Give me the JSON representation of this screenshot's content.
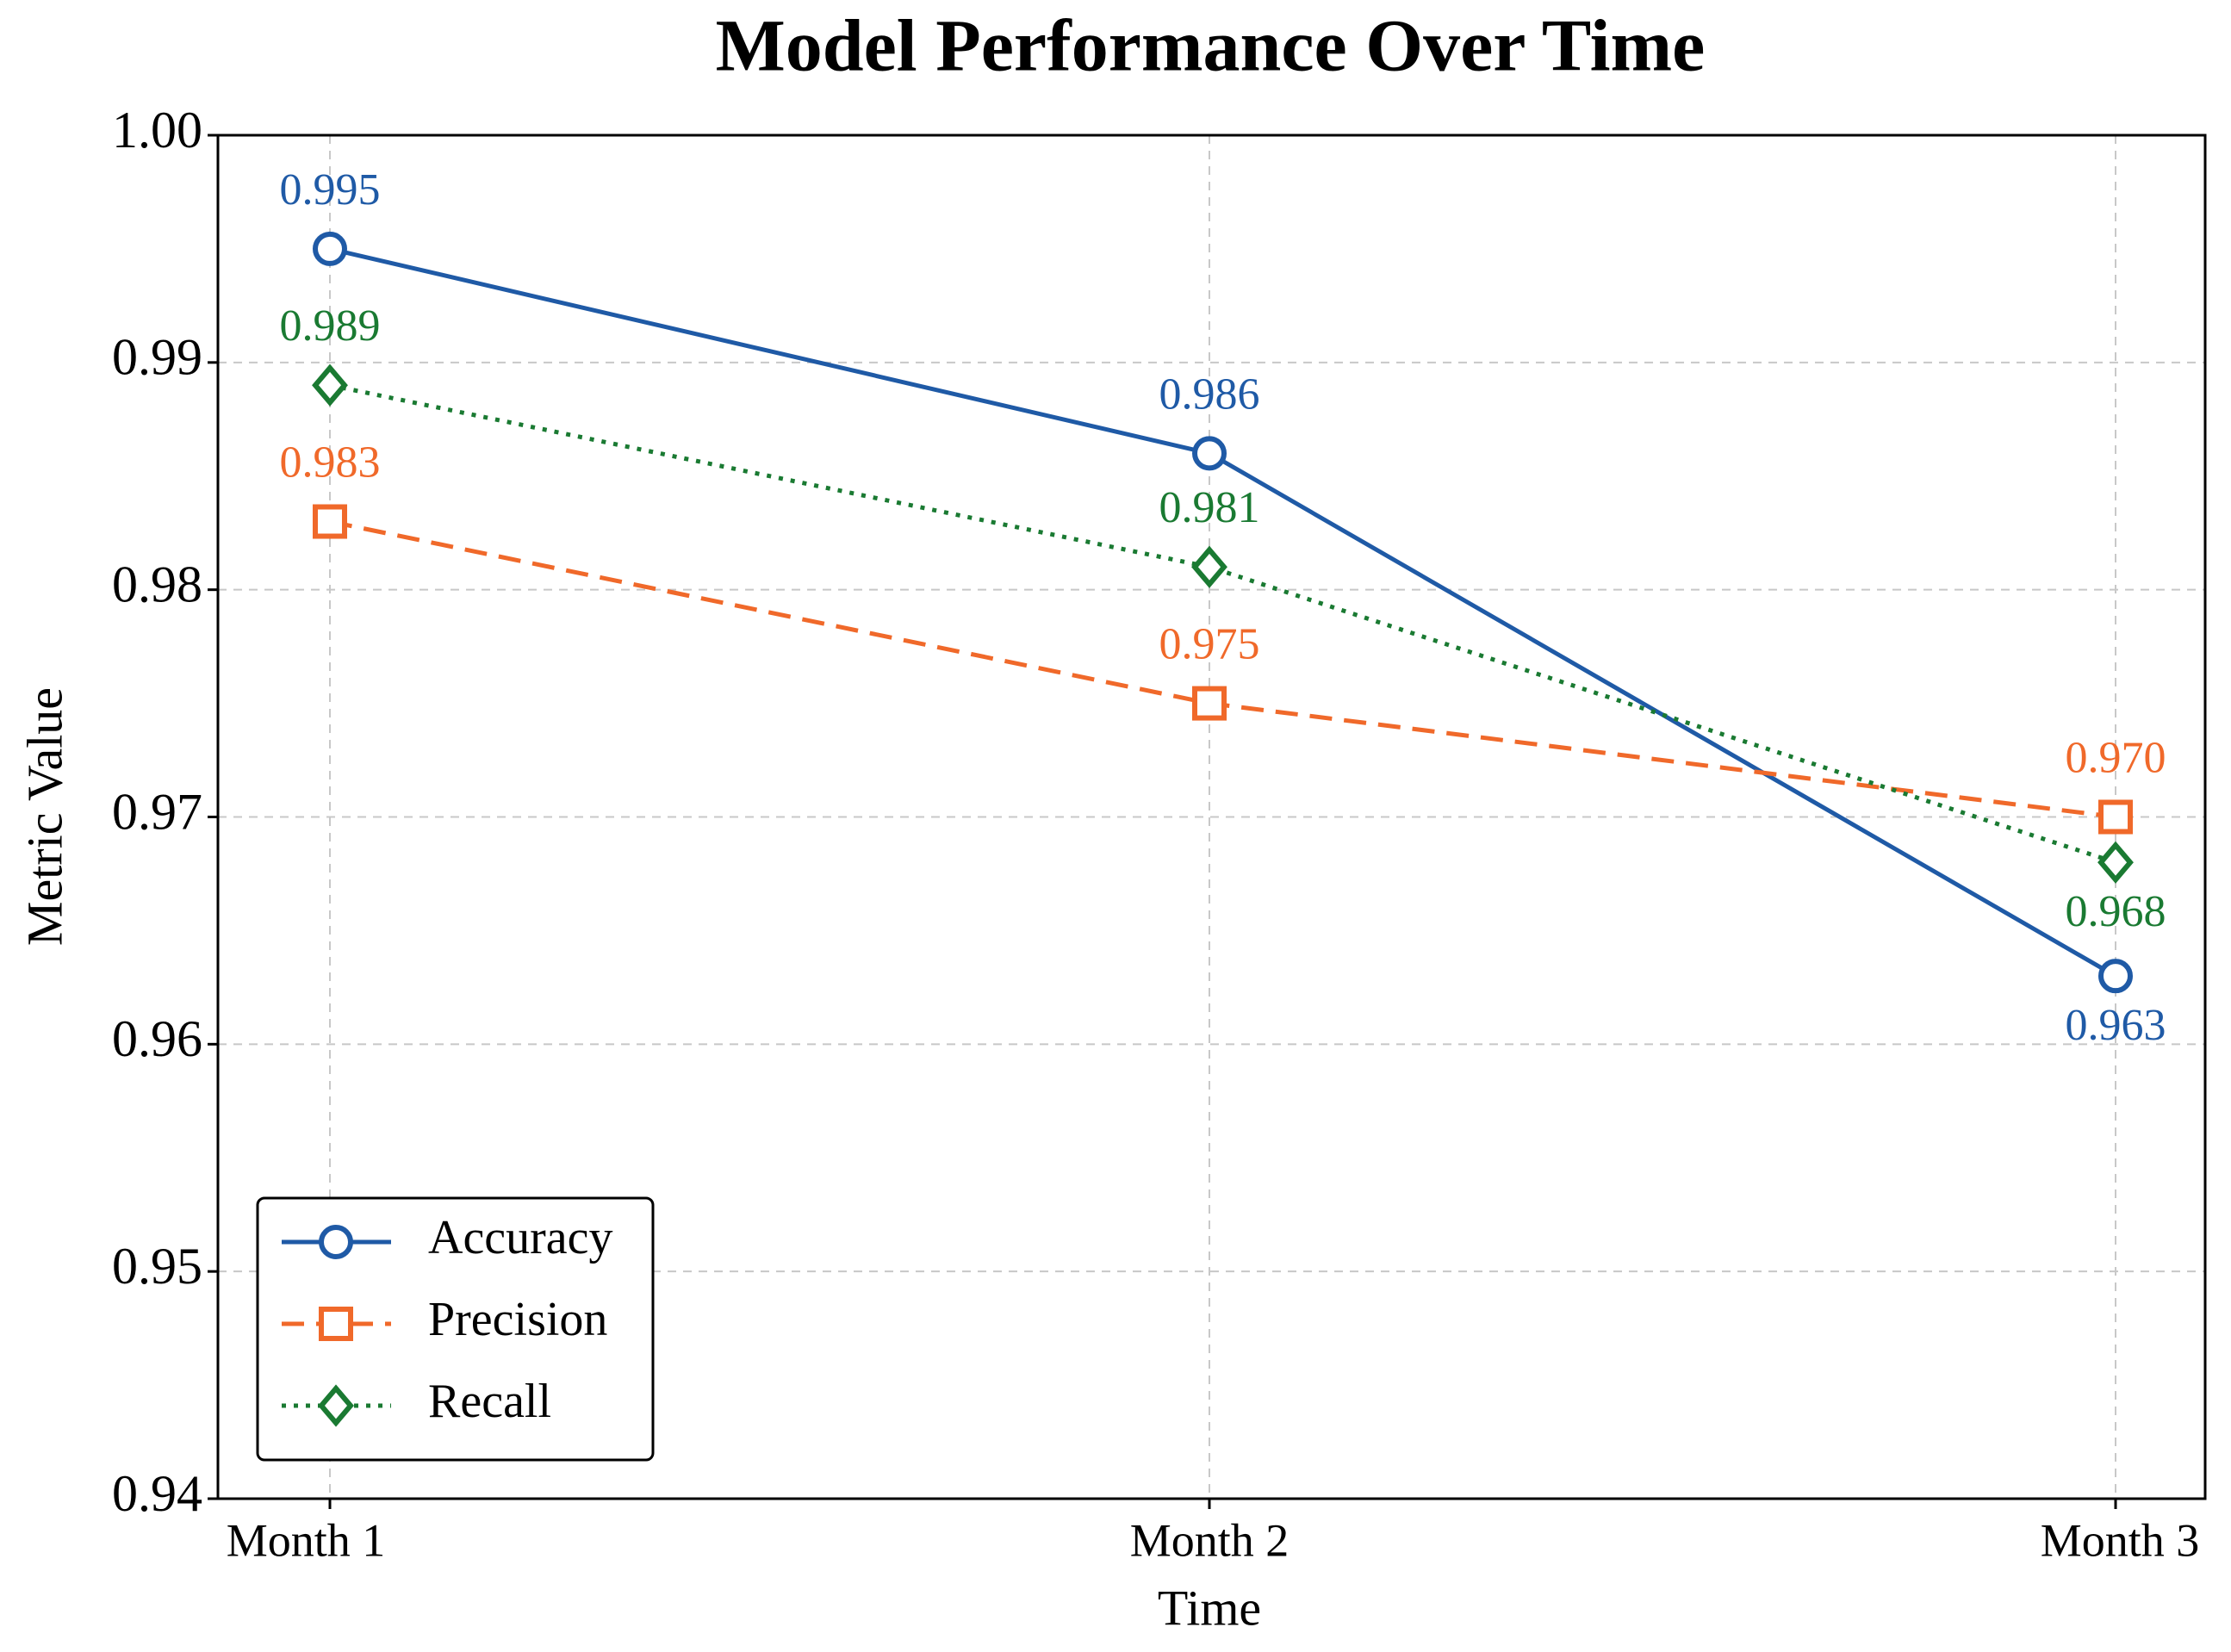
{
  "chart_data": {
    "type": "line",
    "title": "Model Performance Over Time",
    "xlabel": "Time",
    "ylabel": "Metric Value",
    "categories": [
      "Month 1",
      "Month 2",
      "Month 3"
    ],
    "series": [
      {
        "name": "Accuracy",
        "color": "#1f5aa6",
        "linestyle": "solid",
        "marker": "circle",
        "values": [
          0.995,
          0.986,
          0.963
        ],
        "value_labels": [
          "0.995",
          "0.986",
          "0.963"
        ]
      },
      {
        "name": "Precision",
        "color": "#f0692a",
        "linestyle": "dashed",
        "marker": "square",
        "values": [
          0.983,
          0.975,
          0.97
        ],
        "value_labels": [
          "0.983",
          "0.975",
          "0.970"
        ]
      },
      {
        "name": "Recall",
        "color": "#1a7a32",
        "linestyle": "dotted",
        "marker": "diamond",
        "values": [
          0.989,
          0.981,
          0.968
        ],
        "value_labels": [
          "0.989",
          "0.981",
          "0.968"
        ]
      }
    ],
    "ylim": [
      0.94,
      1.0
    ],
    "yticks": [
      0.94,
      0.95,
      0.96,
      0.97,
      0.98,
      0.99,
      {
        "value": 1.0,
        "label": "1.00"
      }
    ],
    "grid": true,
    "legend": "lower left"
  }
}
